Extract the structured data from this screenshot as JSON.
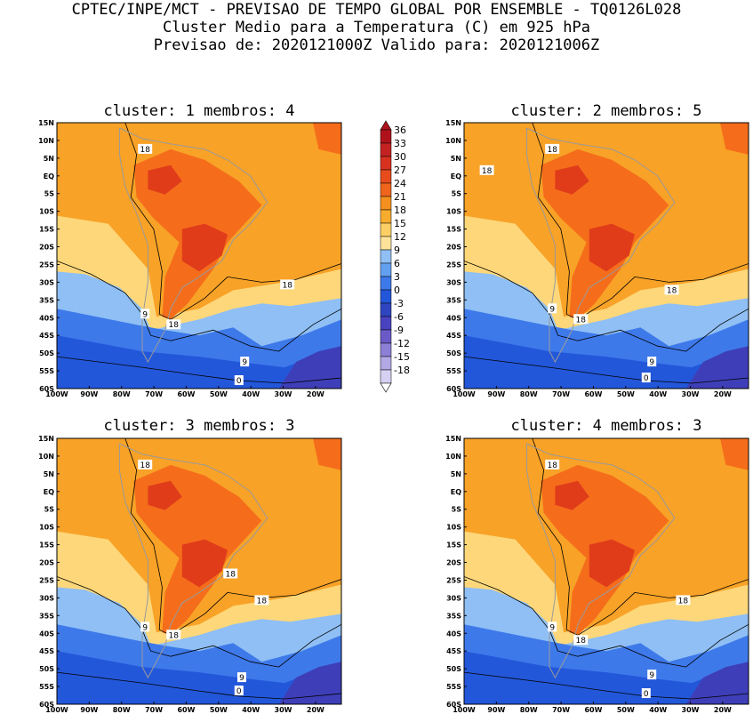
{
  "header": {
    "line1": "CPTEC/INPE/MCT - PREVISAO DE TEMPO GLOBAL POR ENSEMBLE - TQ0126L028",
    "line2": "Cluster Medio para a Temperatura (C) em 925 hPa",
    "line3": "Previsao de: 2020121000Z   Valido para: 2020121006Z"
  },
  "panels": [
    {
      "title": "cluster: 1  membros: 4",
      "contour_labels": [
        "18",
        "18",
        "9",
        "18",
        "9",
        "0"
      ]
    },
    {
      "title": "cluster: 2  membros: 5",
      "contour_labels": [
        "18",
        "18",
        "9",
        "18",
        "18",
        "9",
        "0"
      ]
    },
    {
      "title": "cluster: 3  membros: 3",
      "contour_labels": [
        "18",
        "18",
        "18",
        "9",
        "18",
        "9",
        "0"
      ]
    },
    {
      "title": "cluster: 4  membros: 3",
      "contour_labels": [
        "18",
        "18",
        "9",
        "18",
        "9",
        "0"
      ]
    }
  ],
  "lat_labels": [
    "15N",
    "10N",
    "5N",
    "EQ",
    "5S",
    "10S",
    "15S",
    "20S",
    "25S",
    "30S",
    "35S",
    "40S",
    "45S",
    "50S",
    "55S",
    "60S"
  ],
  "lon_labels": [
    "100W",
    "90W",
    "80W",
    "70W",
    "60W",
    "50W",
    "40W",
    "30W",
    "20W"
  ],
  "colorbar": {
    "labels": [
      "36",
      "33",
      "30",
      "27",
      "24",
      "21",
      "18",
      "15",
      "12",
      "9",
      "6",
      "3",
      "0",
      "-3",
      "-6",
      "-9",
      "-12",
      "-15",
      "-18"
    ],
    "colors": [
      "#b0121c",
      "#c42222",
      "#d9311f",
      "#e84c1c",
      "#f0641c",
      "#f5901e",
      "#f8ac2d",
      "#fdd066",
      "#fde39a",
      "#8fbff4",
      "#63a1f0",
      "#3e79ea",
      "#2357da",
      "#2f45c0",
      "#4a43c0",
      "#6a5ac8",
      "#8c80d6",
      "#b2a9e4",
      "#d6d0f2"
    ]
  },
  "colors": {
    "warm_max": "#e03c1a",
    "warm_mid": "#f56d1b",
    "warm": "#f8a227",
    "mild": "#fdd77a",
    "cool": "#8fbff4",
    "cold": "#3e79ea",
    "colder": "#2357da",
    "coldest": "#3e3fb8",
    "land_outline": "#9a9a9a"
  }
}
